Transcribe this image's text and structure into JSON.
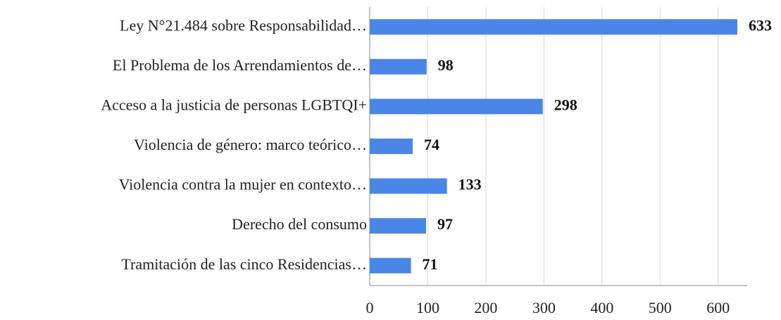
{
  "chart_data": {
    "type": "bar",
    "orientation": "horizontal",
    "categories": [
      "Ley N°21.484 sobre Responsabilidad…",
      "El Problema de los Arrendamientos de…",
      "Acceso a la justicia de personas LGBTQI+",
      "Violencia de género: marco teórico…",
      "Violencia contra la mujer en contexto…",
      "Derecho del consumo",
      "Tramitación de las cinco Residencias…"
    ],
    "values": [
      633,
      98,
      298,
      74,
      133,
      97,
      71
    ],
    "color": "#4a86e8",
    "xlim": [
      0,
      650
    ],
    "xticks": [
      0,
      100,
      200,
      300,
      400,
      500,
      600
    ],
    "grid": true
  }
}
